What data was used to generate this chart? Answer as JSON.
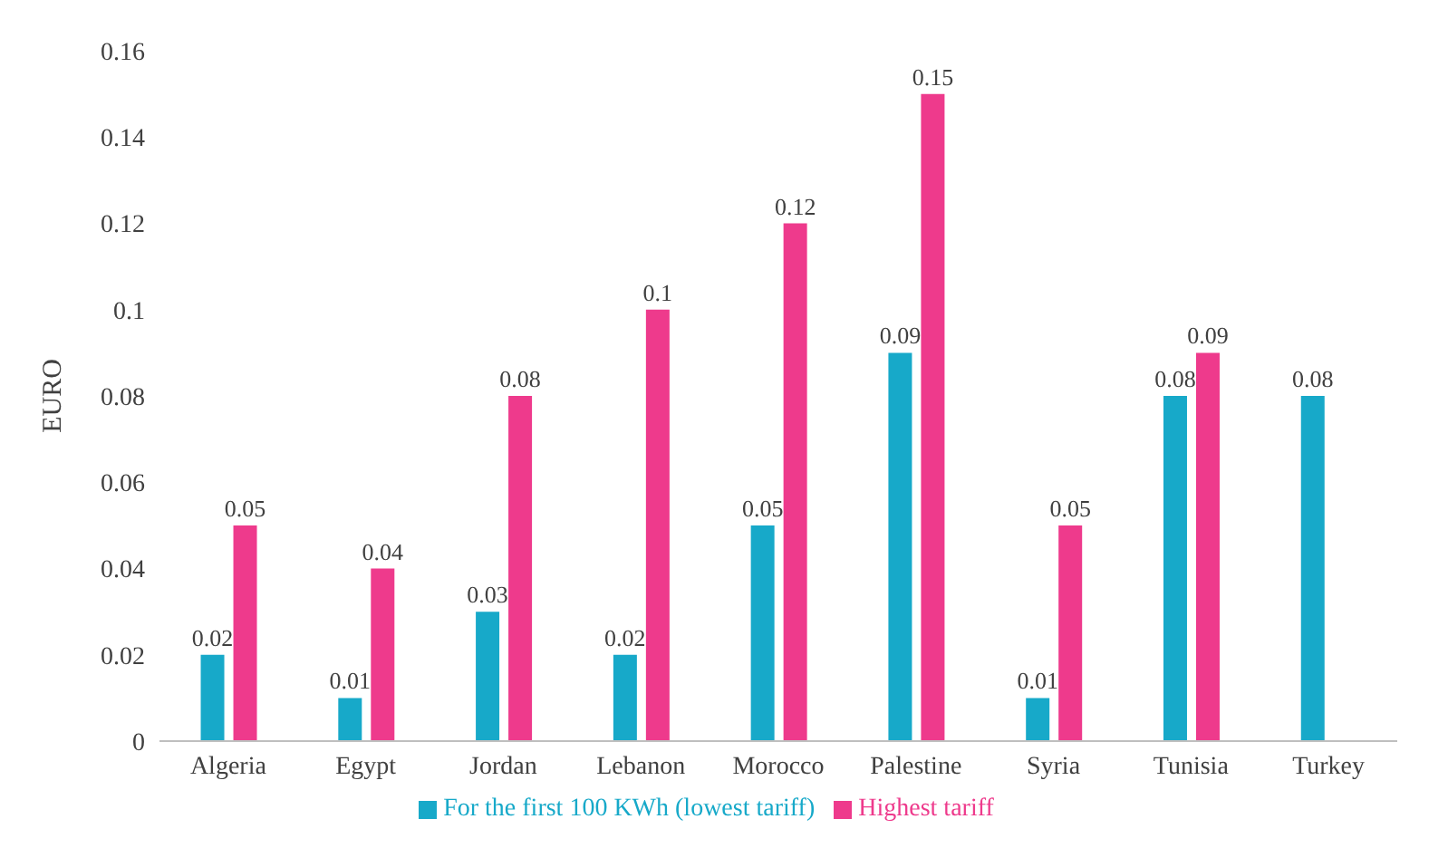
{
  "chart_data": {
    "type": "bar",
    "ylabel": "EURO",
    "categories": [
      "Algeria",
      "Egypt",
      "Jordan",
      "Lebanon",
      "Morocco",
      "Palestine",
      "Syria",
      "Tunisia",
      "Turkey"
    ],
    "series": [
      {
        "name": "For the first 100 KWh (lowest tariff)",
        "color": "#17a9c9",
        "values": [
          0.02,
          0.01,
          0.03,
          0.02,
          0.05,
          0.09,
          0.01,
          0.08,
          0.08
        ]
      },
      {
        "name": "Highest tariff",
        "color": "#ee3a8c",
        "values": [
          0.05,
          0.04,
          0.08,
          0.1,
          0.12,
          0.15,
          0.05,
          0.09,
          null
        ]
      }
    ],
    "ylim": [
      0,
      0.16
    ],
    "yticks": [
      0,
      0.02,
      0.04,
      0.06,
      0.08,
      0.1,
      0.12,
      0.14,
      0.16
    ],
    "data_labels": true,
    "legend": "bottom"
  }
}
